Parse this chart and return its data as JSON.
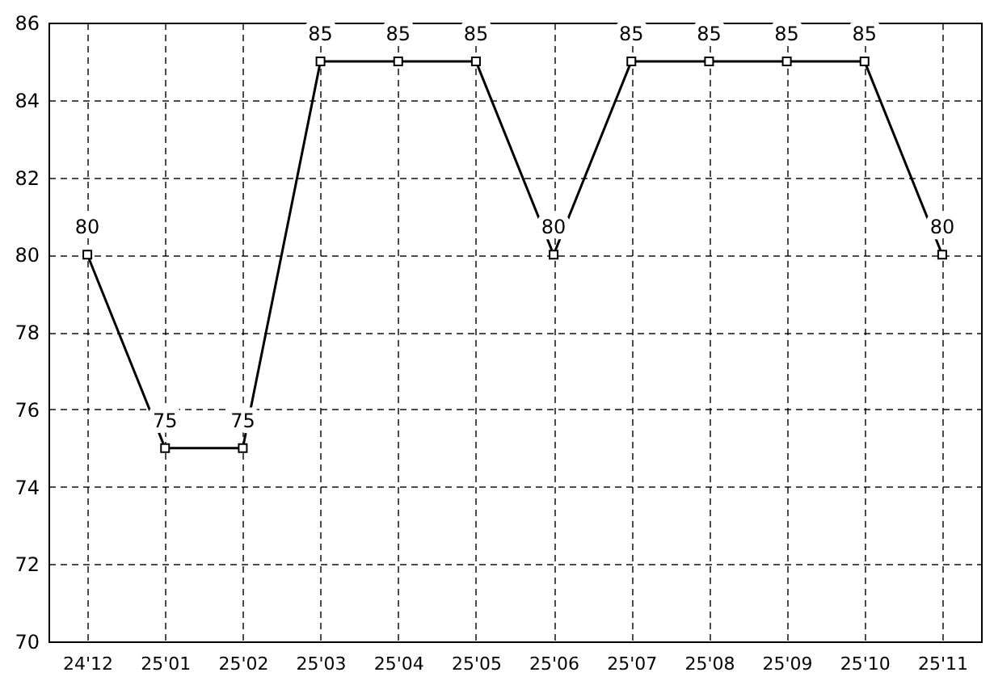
{
  "chart_data": {
    "type": "line",
    "categories": [
      "24'12",
      "25'01",
      "25'02",
      "25'03",
      "25'04",
      "25'05",
      "25'06",
      "25'07",
      "25'08",
      "25'09",
      "25'10",
      "25'11"
    ],
    "series": [
      {
        "color": "#000000",
        "values": [
          80,
          75,
          75,
          85,
          85,
          85,
          80,
          85,
          85,
          85,
          85,
          80
        ]
      }
    ],
    "ylim": [
      70,
      86
    ],
    "yticks": [
      70,
      72,
      74,
      76,
      78,
      80,
      82,
      84,
      86
    ],
    "grid": true,
    "marker": "square",
    "line_style": "solid",
    "data_labels": true
  }
}
